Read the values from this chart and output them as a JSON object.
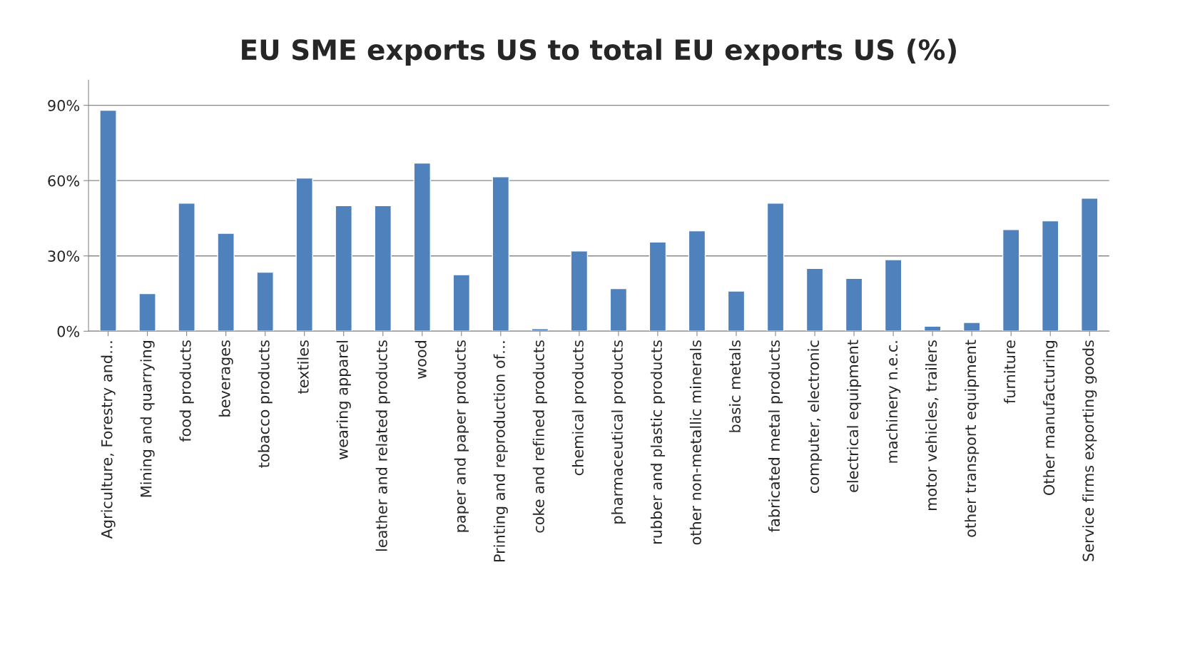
{
  "chart_data": {
    "type": "bar",
    "title": "EU SME exports US to total EU exports US (%)",
    "categories": [
      "Agriculture, Forestry and…",
      "Mining and quarrying",
      "food products",
      "beverages",
      "tobacco products",
      "textiles",
      "wearing apparel",
      "leather and related products",
      "wood",
      "paper and paper products",
      "Printing and reproduction of…",
      "coke and refined products",
      "chemical products",
      "pharmaceutical products",
      "rubber and plastic products",
      "other non-metallic minerals",
      "basic metals",
      "fabricated metal products",
      "computer, electronic",
      "electrical equipment",
      "machinery n.e.c.",
      "motor vehicles, trailers",
      "other transport equipment",
      "furniture",
      "Other manufacturing",
      "Service firms exporting goods"
    ],
    "values": [
      88,
      15,
      51,
      39,
      23.5,
      61,
      50,
      50,
      67,
      22.5,
      61.5,
      1,
      32,
      17,
      35.5,
      40,
      16,
      51,
      25,
      21,
      28.5,
      2,
      3.5,
      40.5,
      44,
      53
    ],
    "color": "#4f81bd",
    "ylim": [
      0,
      100
    ],
    "yticks": [
      {
        "value": 0,
        "label": "0%"
      },
      {
        "value": 30,
        "label": "30%"
      },
      {
        "value": 60,
        "label": "60%"
      },
      {
        "value": 90,
        "label": "90%"
      }
    ],
    "grid": "y"
  }
}
